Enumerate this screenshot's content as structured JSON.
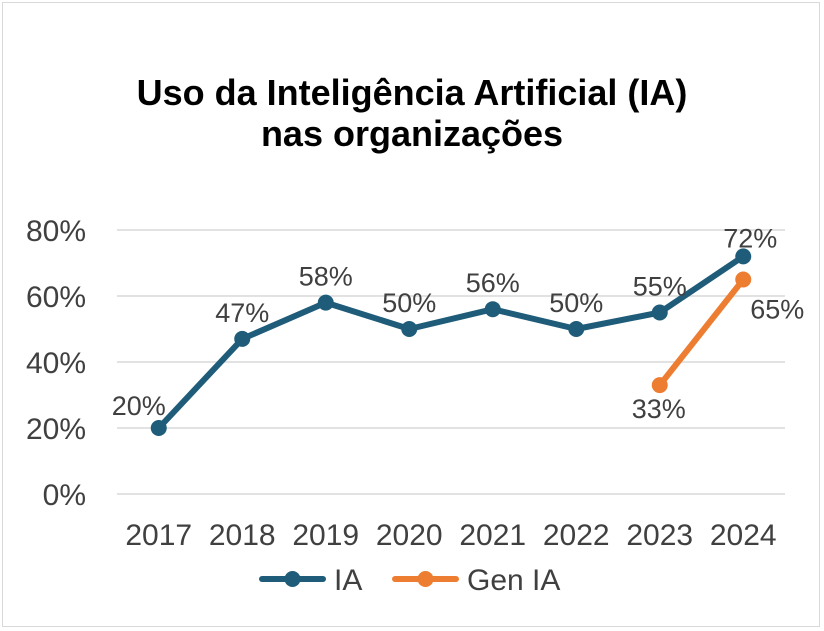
{
  "chart_data": {
    "type": "line",
    "title_line1": "Uso da Inteligência Artificial (IA)",
    "title_line2": "nas organizações",
    "x": [
      "2017",
      "2018",
      "2019",
      "2020",
      "2021",
      "2022",
      "2023",
      "2024"
    ],
    "yticks": [
      "0%",
      "20%",
      "40%",
      "60%",
      "80%"
    ],
    "ylim": [
      0,
      80
    ],
    "grid": true,
    "legend_position": "bottom",
    "series": [
      {
        "name": "IA",
        "color": "#1f5c7a",
        "values": [
          20,
          47,
          58,
          50,
          56,
          50,
          55,
          72
        ],
        "labels": [
          "20%",
          "47%",
          "58%",
          "50%",
          "56%",
          "50%",
          "55%",
          "72%"
        ]
      },
      {
        "name": "Gen IA",
        "color": "#ed7d31",
        "values": [
          null,
          null,
          null,
          null,
          null,
          null,
          33,
          65
        ],
        "labels": [
          null,
          null,
          null,
          null,
          null,
          null,
          "33%",
          "65%"
        ]
      }
    ]
  }
}
